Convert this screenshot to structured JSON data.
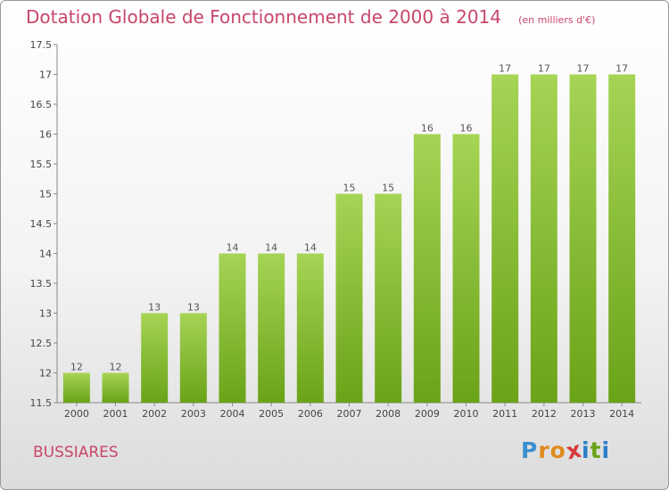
{
  "chart_data": {
    "type": "bar",
    "title": "Dotation Globale de Fonctionnement de 2000 à 2014",
    "subtitle": "(en milliers d'€)",
    "xlabel": "",
    "ylabel": "",
    "categories": [
      "2000",
      "2001",
      "2002",
      "2003",
      "2004",
      "2005",
      "2006",
      "2007",
      "2008",
      "2009",
      "2010",
      "2011",
      "2012",
      "2013",
      "2014"
    ],
    "values": [
      12,
      12,
      13,
      13,
      14,
      14,
      14,
      15,
      15,
      16,
      16,
      17,
      17,
      17,
      17
    ],
    "ylim": [
      11.5,
      17.5
    ],
    "yticks": [
      11.5,
      12,
      12.5,
      13,
      13.5,
      14,
      14.5,
      15,
      15.5,
      16,
      16.5,
      17,
      17.5
    ],
    "grid": false,
    "bar_color_top": "#a6d455",
    "bar_color_bottom": "#6aa318"
  },
  "commune": "BUSSIARES",
  "logo": {
    "letters": [
      "P",
      "r",
      "o",
      "x",
      "i",
      "t",
      "i"
    ],
    "colors": [
      "#3a8fd0",
      "#e08a1e",
      "#e08a1e",
      "#d83a3a",
      "#2b7ec8",
      "#6aa318",
      "#2b7ec8"
    ]
  }
}
